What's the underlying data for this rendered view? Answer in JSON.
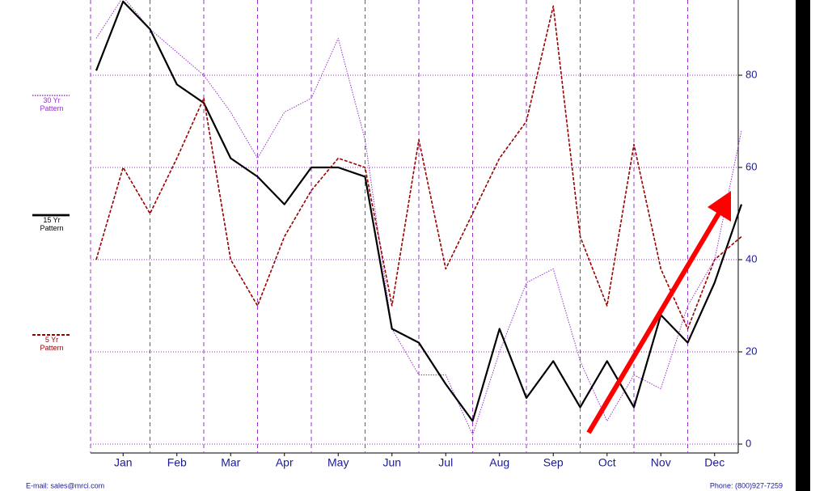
{
  "chart_data": {
    "type": "line",
    "x": [
      0,
      0.5,
      1,
      1.5,
      2,
      2.5,
      3,
      3.5,
      4,
      4.5,
      5,
      5.5,
      6,
      6.5,
      7,
      7.5,
      8,
      8.5,
      9,
      9.5,
      10,
      10.5,
      11,
      11.5,
      12
    ],
    "xlim": [
      0,
      12
    ],
    "xticks": [
      {
        "value": 0.5,
        "label": "Jan"
      },
      {
        "value": 1.5,
        "label": "Feb"
      },
      {
        "value": 2.5,
        "label": "Mar"
      },
      {
        "value": 3.5,
        "label": "Apr"
      },
      {
        "value": 4.5,
        "label": "May"
      },
      {
        "value": 5.5,
        "label": "Jun"
      },
      {
        "value": 6.5,
        "label": "Jul"
      },
      {
        "value": 7.5,
        "label": "Aug"
      },
      {
        "value": 8.5,
        "label": "Sep"
      },
      {
        "value": 9.5,
        "label": "Oct"
      },
      {
        "value": 10.5,
        "label": "Nov"
      },
      {
        "value": 11.5,
        "label": "Dec"
      }
    ],
    "ylim": [
      0,
      100
    ],
    "yticks": [
      0,
      20,
      40,
      60,
      80
    ],
    "grid": true,
    "series": [
      {
        "name": "30 Yr Pattern",
        "color": "#9933cc",
        "line_style": "dotted",
        "values": [
          88,
          97,
          90,
          85,
          80,
          72,
          62,
          72,
          75,
          88,
          66,
          25,
          15,
          15,
          2,
          20,
          35,
          38,
          18,
          5,
          15,
          12,
          30,
          40,
          68
        ]
      },
      {
        "name": "15 Yr Pattern",
        "color": "#000000",
        "line_style": "solid",
        "values": [
          81,
          96,
          90,
          78,
          74,
          62,
          58,
          52,
          60,
          60,
          58,
          25,
          22,
          13,
          5,
          25,
          10,
          18,
          8,
          18,
          8,
          28,
          22,
          35,
          52
        ]
      },
      {
        "name": "5 Yr Pattern",
        "color": "#990000",
        "line_style": "dashed",
        "values": [
          40,
          60,
          50,
          62,
          75,
          40,
          30,
          45,
          55,
          62,
          60,
          30,
          66,
          38,
          50,
          62,
          70,
          95,
          45,
          30,
          65,
          38,
          25,
          40,
          45
        ]
      }
    ]
  },
  "footer": {
    "email": "E-mail: sales@mrci.com",
    "phone": "Phone: (800)927-7259"
  }
}
